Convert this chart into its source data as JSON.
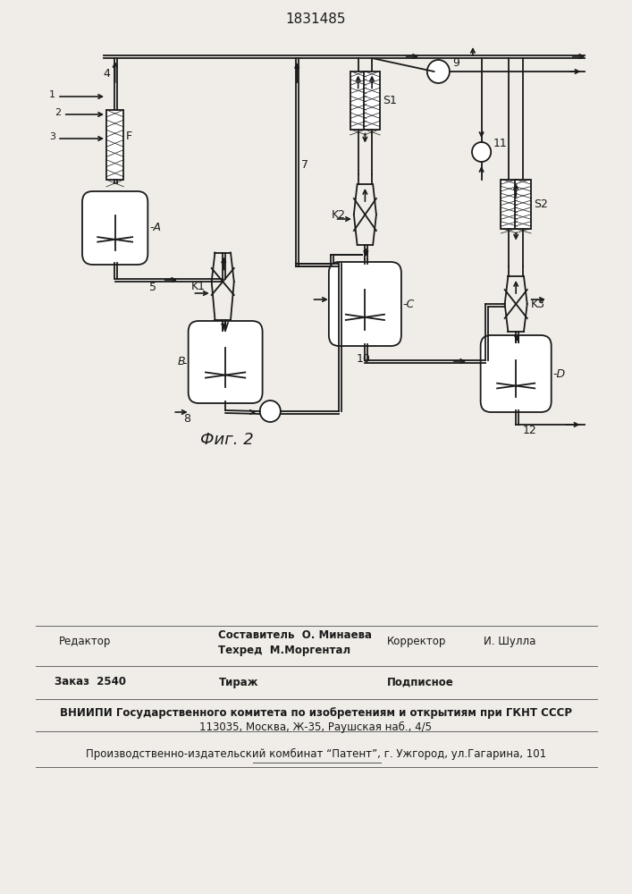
{
  "title": "1831485",
  "fig_label": "Фиг. 2",
  "bg_color": "#f0ede8",
  "line_color": "#1a1a1a",
  "text_color": "#1a1a1a",
  "footer3": "ВНИИПИ Государственного комитета по изобретениям и открытиям при ГКНТ СССР",
  "footer4": "113035, Москва, Ж-35, Раушская наб., 4/5",
  "footer5": "Производственно-издательский комбинат “Патент”, г. Ужгород, ул.Гагарина, 101"
}
